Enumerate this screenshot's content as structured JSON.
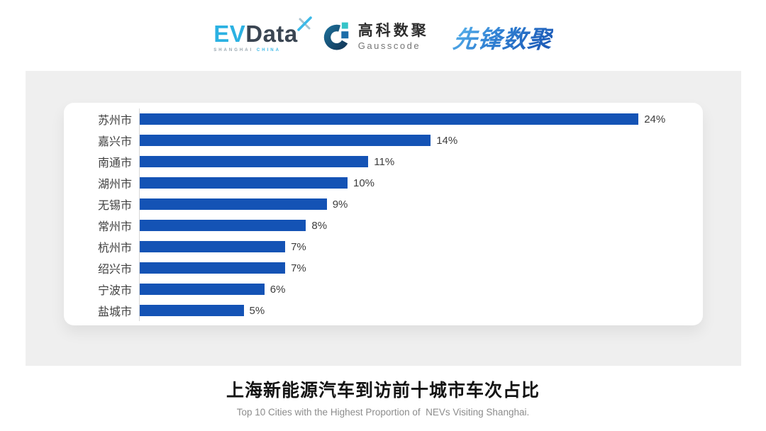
{
  "header": {
    "evdata": {
      "text_ev": "EV",
      "text_data": "Data",
      "sub_shanghai": "SHANGHAI",
      "sub_china": "CHINA"
    },
    "gausscode": {
      "name_cn": "高科数聚",
      "name_en": "Gausscode"
    },
    "xianfeng": {
      "text": "先锋数聚"
    }
  },
  "chart_data": {
    "type": "bar",
    "orientation": "horizontal",
    "categories": [
      "苏州市",
      "嘉兴市",
      "南通市",
      "湖州市",
      "无锡市",
      "常州市",
      "杭州市",
      "绍兴市",
      "宁波市",
      "盐城市"
    ],
    "values": [
      24,
      14,
      11,
      10,
      9,
      8,
      7,
      7,
      6,
      5
    ],
    "value_labels": [
      "24%",
      "14%",
      "11%",
      "10%",
      "9%",
      "8%",
      "7%",
      "7%",
      "6%",
      "5%"
    ],
    "unit": "%",
    "xlim": [
      0,
      27
    ],
    "grid": false,
    "legend": "none",
    "bar_color": "#1453b5",
    "axis_color": "#d8d8d8",
    "title": "上海新能源汽车到访前十城市车次占比",
    "subtitle": "Top 10 Cities with the Highest Proportion of  NEVs Visiting Shanghai."
  },
  "footer": {
    "title": "上海新能源汽车到访前十城市车次占比",
    "subtitle": "Top 10 Cities with the Highest Proportion of  NEVs Visiting Shanghai."
  },
  "colors": {
    "panel_bg": "#efefef",
    "card_bg": "#ffffff",
    "bar_blue": "#1453b5",
    "evdata_blue": "#2bb1e2",
    "evdata_dark": "#3a4552",
    "gausscode_teal": "#35c4c8",
    "gausscode_navy": "#16496d",
    "xianfeng_blue": "#2f7fd2"
  }
}
